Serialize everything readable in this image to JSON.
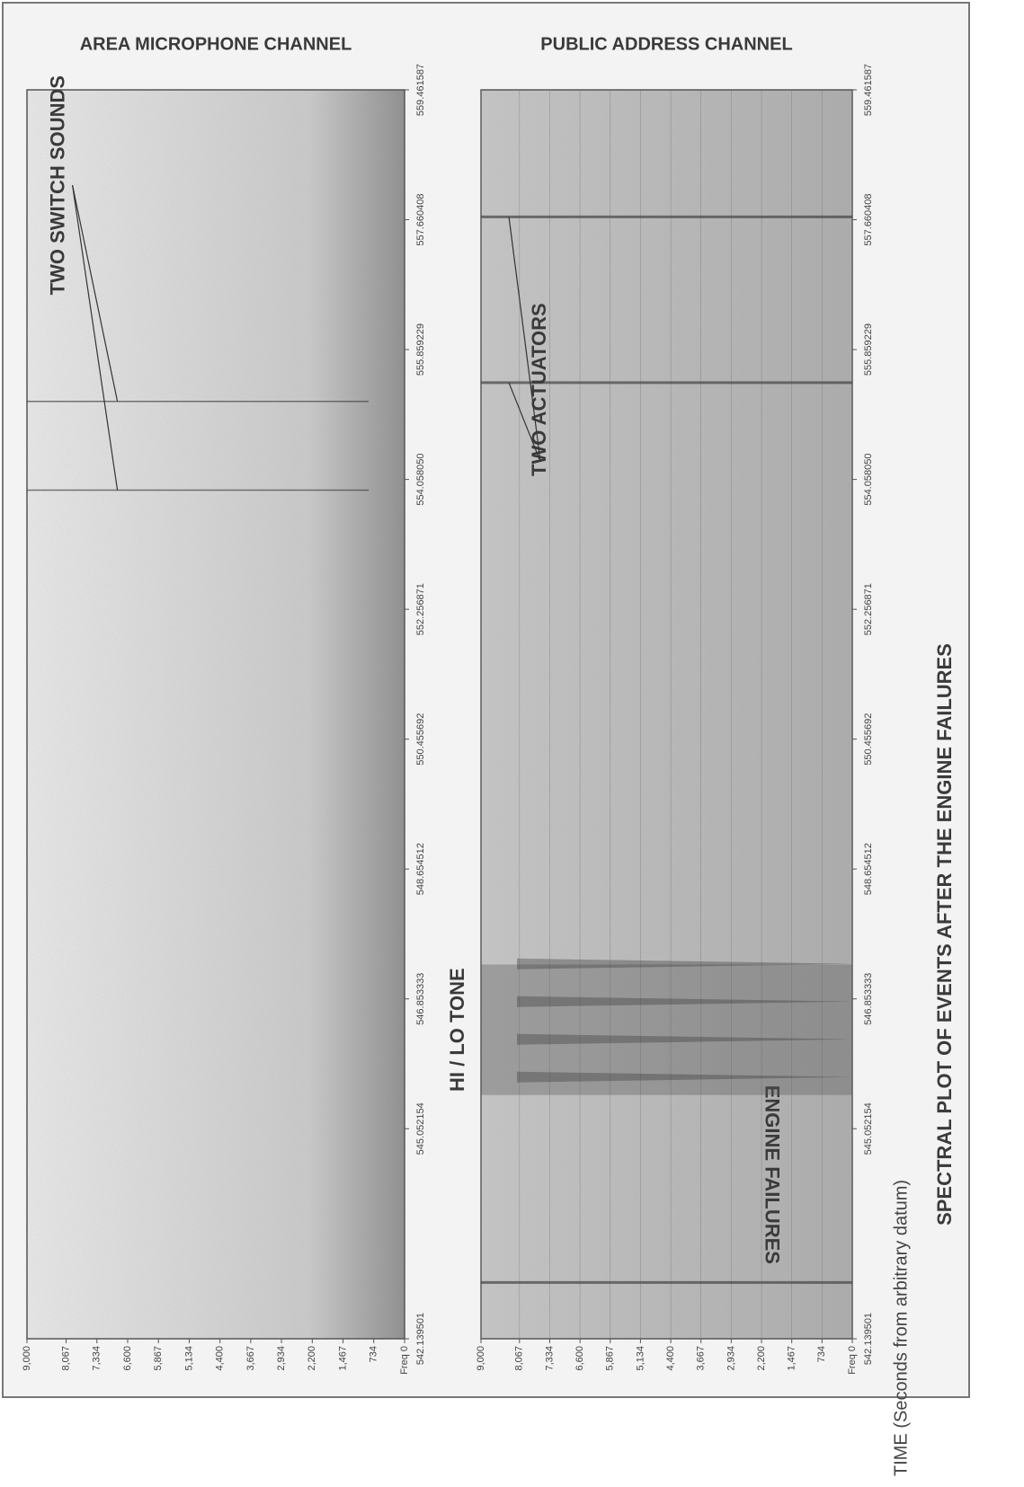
{
  "title": "SPECTRAL PLOT OF EVENTS AFTER THE ENGINE FAILURES",
  "x_label": "TIME (Seconds from arbitrary datum)",
  "chart_data": [
    {
      "type": "spectrogram",
      "title": "AREA MICROPHONE CHANNEL",
      "xlim": [
        542.139501,
        559.461587
      ],
      "ylim": [
        0,
        9000
      ],
      "xticks": [
        542.139501,
        545.052154,
        546.853333,
        548.654512,
        550.455692,
        552.256871,
        {
          "value": 554.05805,
          "label": "554.058050"
        },
        555.859229,
        557.660408,
        559.461587
      ],
      "yticks": [
        {
          "value": 9000,
          "label": "9,000"
        },
        {
          "value": 8067,
          "label": "8,067"
        },
        {
          "value": 7334,
          "label": "7,334"
        },
        {
          "value": 6600,
          "label": "6,600"
        },
        {
          "value": 5867,
          "label": "5,867"
        },
        {
          "value": 5134,
          "label": "5,134"
        },
        {
          "value": 4400,
          "label": "4,400"
        },
        {
          "value": 3667,
          "label": "3,667"
        },
        {
          "value": 2934,
          "label": "2,934"
        },
        {
          "value": 2200,
          "label": "2,200"
        },
        {
          "value": 1467,
          "label": "1,467"
        },
        734,
        {
          "value": 0,
          "label": "Freq 0"
        }
      ],
      "events": [
        {
          "label": "TWO SWITCH SOUNDS",
          "x": [
            553.91,
            555.14
          ]
        }
      ]
    },
    {
      "type": "spectrogram",
      "title": "PUBLIC ADDRESS CHANNEL",
      "xlim": [
        542.139501,
        559.461587
      ],
      "ylim": [
        0,
        9000
      ],
      "xticks": [
        542.139501,
        545.052154,
        546.853333,
        548.654512,
        550.455692,
        552.256871,
        {
          "value": 554.05805,
          "label": "554.058050"
        },
        555.859229,
        557.660408,
        559.461587
      ],
      "yticks": [
        {
          "value": 9000,
          "label": "9,000"
        },
        {
          "value": 8067,
          "label": "8,067"
        },
        {
          "value": 7334,
          "label": "7,334"
        },
        {
          "value": 6600,
          "label": "6,600"
        },
        {
          "value": 5867,
          "label": "5,867"
        },
        {
          "value": 5134,
          "label": "5,134"
        },
        {
          "value": 4400,
          "label": "4,400"
        },
        {
          "value": 3667,
          "label": "3,667"
        },
        {
          "value": 2934,
          "label": "2,934"
        },
        {
          "value": 2200,
          "label": "2,200"
        },
        {
          "value": 1467,
          "label": "1,467"
        },
        734,
        {
          "value": 0,
          "label": "Freq 0"
        }
      ],
      "events": [
        {
          "label": "ENGINE FAILURES",
          "x": [
            542.92
          ]
        },
        {
          "label": "HI / LO TONE",
          "x": [
            545.52,
            547.33
          ]
        },
        {
          "label": "TWO ACTUATORS",
          "x": [
            555.4,
            557.7
          ]
        }
      ]
    }
  ]
}
